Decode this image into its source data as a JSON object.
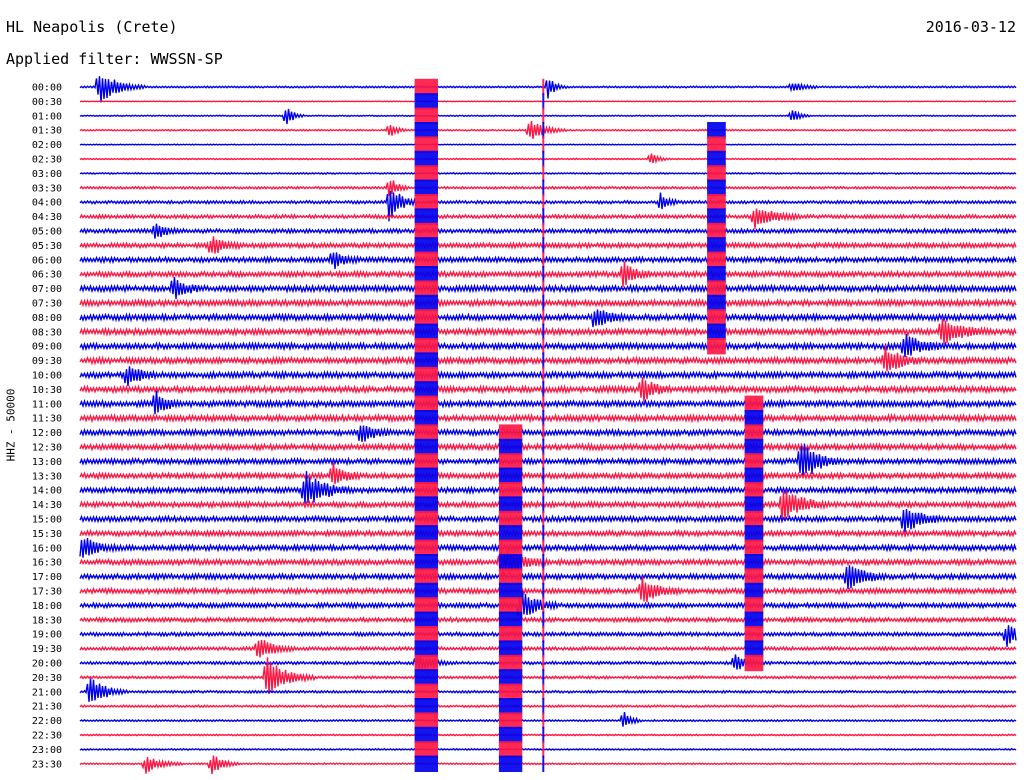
{
  "header": {
    "station": "HL Neapolis (Crete)",
    "date": "2016-03-12",
    "filter": "Applied filter: WWSSN-SP",
    "channel": "HHZ - 50000"
  },
  "colors": {
    "odd_rows": "#0000ee",
    "even_rows": "#ff1744",
    "background": "#ffffff"
  },
  "chart_data": {
    "type": "line",
    "title": "HL Neapolis (Crete)",
    "date": "2016-03-12",
    "filter": "WWSSN-SP",
    "ylabel": "HHZ - 50000",
    "xlabel": "",
    "grid": false,
    "legend": "none",
    "series_colors_alternate": [
      "#0000ee",
      "#ff1744"
    ],
    "row_labels": [
      "00:00",
      "00:30",
      "01:00",
      "01:30",
      "02:00",
      "02:30",
      "03:00",
      "03:30",
      "04:00",
      "04:30",
      "05:00",
      "05:30",
      "06:00",
      "06:30",
      "07:00",
      "07:30",
      "08:00",
      "08:30",
      "09:00",
      "09:30",
      "10:00",
      "10:30",
      "11:00",
      "11:30",
      "12:00",
      "12:30",
      "13:00",
      "13:30",
      "14:00",
      "14:30",
      "15:00",
      "15:30",
      "16:00",
      "16:30",
      "17:00",
      "17:30",
      "18:00",
      "18:30",
      "19:00",
      "19:30",
      "20:00",
      "20:30",
      "21:00",
      "21:30",
      "22:00",
      "22:30",
      "23:00",
      "23:30"
    ],
    "row_noise_level": [
      0.6,
      0.2,
      0.4,
      0.5,
      0.3,
      0.4,
      0.5,
      0.8,
      1.0,
      1.2,
      1.4,
      1.6,
      1.7,
      1.8,
      2.0,
      2.0,
      2.0,
      2.0,
      2.0,
      2.0,
      2.0,
      2.0,
      2.0,
      2.0,
      1.9,
      1.9,
      1.8,
      1.8,
      1.8,
      1.8,
      1.8,
      1.8,
      1.8,
      1.8,
      1.8,
      1.7,
      1.6,
      1.4,
      1.3,
      1.1,
      1.0,
      0.9,
      0.8,
      0.7,
      0.6,
      0.5,
      0.5,
      0.5
    ],
    "events": [
      {
        "row": 0,
        "t": 0.02,
        "amp": 18,
        "dur": 0.05
      },
      {
        "row": 0,
        "t": 0.5,
        "amp": 12,
        "dur": 0.02
      },
      {
        "row": 0,
        "t": 0.76,
        "amp": 6,
        "dur": 0.03
      },
      {
        "row": 2,
        "t": 0.22,
        "amp": 12,
        "dur": 0.02
      },
      {
        "row": 2,
        "t": 0.76,
        "amp": 8,
        "dur": 0.02
      },
      {
        "row": 3,
        "t": 0.48,
        "amp": 12,
        "dur": 0.04
      },
      {
        "row": 3,
        "t": 0.33,
        "amp": 8,
        "dur": 0.02
      },
      {
        "row": 5,
        "t": 0.61,
        "amp": 6,
        "dur": 0.02
      },
      {
        "row": 7,
        "t": 0.33,
        "amp": 14,
        "dur": 0.02
      },
      {
        "row": 8,
        "t": 0.33,
        "amp": 22,
        "dur": 0.03
      },
      {
        "row": 8,
        "t": 0.62,
        "amp": 10,
        "dur": 0.02
      },
      {
        "row": 9,
        "t": 0.72,
        "amp": 14,
        "dur": 0.05
      },
      {
        "row": 10,
        "t": 0.08,
        "amp": 10,
        "dur": 0.03
      },
      {
        "row": 11,
        "t": 0.14,
        "amp": 12,
        "dur": 0.03
      },
      {
        "row": 12,
        "t": 0.27,
        "amp": 10,
        "dur": 0.03
      },
      {
        "row": 13,
        "t": 0.58,
        "amp": 14,
        "dur": 0.03
      },
      {
        "row": 14,
        "t": 0.1,
        "amp": 12,
        "dur": 0.03
      },
      {
        "row": 16,
        "t": 0.55,
        "amp": 14,
        "dur": 0.03
      },
      {
        "row": 17,
        "t": 0.92,
        "amp": 14,
        "dur": 0.05
      },
      {
        "row": 18,
        "t": 0.88,
        "amp": 14,
        "dur": 0.04
      },
      {
        "row": 19,
        "t": 0.86,
        "amp": 16,
        "dur": 0.04
      },
      {
        "row": 20,
        "t": 0.05,
        "amp": 12,
        "dur": 0.03
      },
      {
        "row": 21,
        "t": 0.6,
        "amp": 14,
        "dur": 0.03
      },
      {
        "row": 22,
        "t": 0.08,
        "amp": 14,
        "dur": 0.03
      },
      {
        "row": 24,
        "t": 0.3,
        "amp": 12,
        "dur": 0.03
      },
      {
        "row": 26,
        "t": 0.77,
        "amp": 26,
        "dur": 0.04
      },
      {
        "row": 27,
        "t": 0.27,
        "amp": 14,
        "dur": 0.03
      },
      {
        "row": 28,
        "t": 0.24,
        "amp": 20,
        "dur": 0.05
      },
      {
        "row": 29,
        "t": 0.75,
        "amp": 18,
        "dur": 0.05
      },
      {
        "row": 30,
        "t": 0.88,
        "amp": 16,
        "dur": 0.04
      },
      {
        "row": 32,
        "t": 0.0,
        "amp": 14,
        "dur": 0.04
      },
      {
        "row": 33,
        "t": 0.45,
        "amp": 18,
        "dur": 0.05
      },
      {
        "row": 34,
        "t": 0.82,
        "amp": 16,
        "dur": 0.04
      },
      {
        "row": 35,
        "t": 0.6,
        "amp": 14,
        "dur": 0.04
      },
      {
        "row": 36,
        "t": 0.47,
        "amp": 18,
        "dur": 0.04
      },
      {
        "row": 38,
        "t": 0.99,
        "amp": 12,
        "dur": 0.03
      },
      {
        "row": 39,
        "t": 0.19,
        "amp": 14,
        "dur": 0.04
      },
      {
        "row": 40,
        "t": 0.36,
        "amp": 8,
        "dur": 0.04
      },
      {
        "row": 40,
        "t": 0.7,
        "amp": 10,
        "dur": 0.03
      },
      {
        "row": 41,
        "t": 0.2,
        "amp": 22,
        "dur": 0.05
      },
      {
        "row": 42,
        "t": 0.01,
        "amp": 18,
        "dur": 0.04
      },
      {
        "row": 44,
        "t": 0.58,
        "amp": 10,
        "dur": 0.02
      },
      {
        "row": 47,
        "t": 0.07,
        "amp": 10,
        "dur": 0.04
      },
      {
        "row": 47,
        "t": 0.14,
        "amp": 12,
        "dur": 0.03
      }
    ],
    "vertical_bursts": [
      {
        "t": 0.37,
        "row_start": 0,
        "row_end": 47,
        "width": 0.025
      },
      {
        "t": 0.495,
        "row_start": 0,
        "row_end": 47,
        "width": 0.002
      },
      {
        "t": 0.46,
        "row_start": 24,
        "row_end": 47,
        "width": 0.025
      },
      {
        "t": 0.68,
        "row_start": 3,
        "row_end": 18,
        "width": 0.02
      },
      {
        "t": 0.72,
        "row_start": 22,
        "row_end": 40,
        "width": 0.02
      }
    ]
  }
}
